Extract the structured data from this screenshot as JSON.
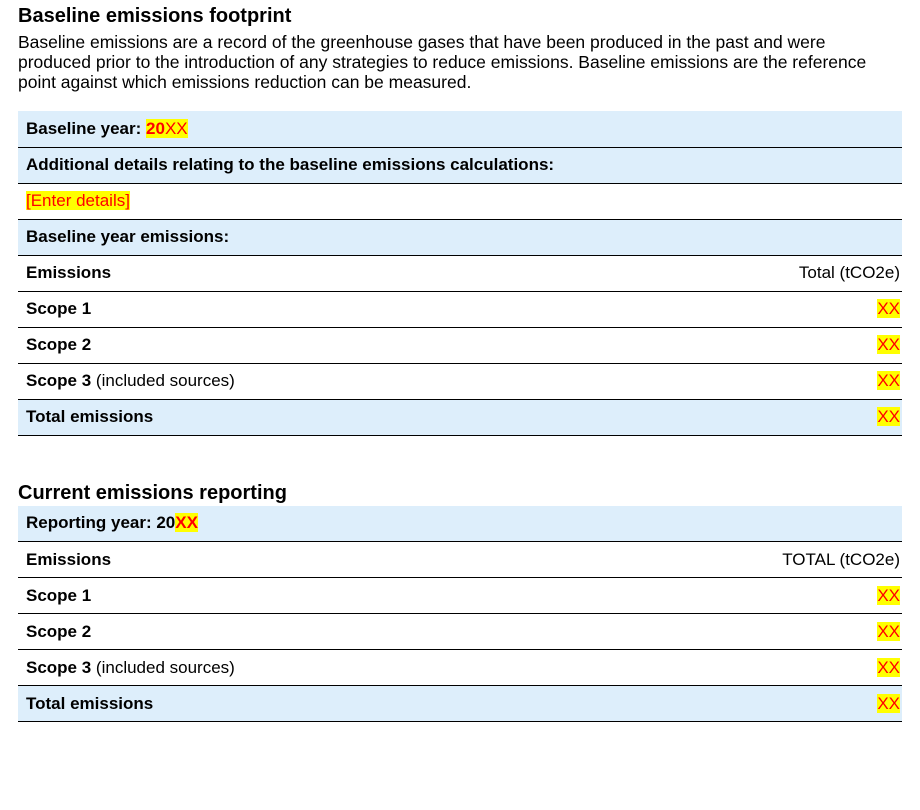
{
  "baseline": {
    "title": "Baseline emissions footprint",
    "intro": "Baseline emissions are a record of the greenhouse gases that have been produced in the past and were produced prior to the introduction of any strategies to reduce emissions. Baseline emissions are the reference point against which emissions reduction can be measured.",
    "year_label": "Baseline year: ",
    "year_prefix": "20",
    "year_placeholder": "XX",
    "details_label": "Additional details relating to the baseline emissions calculations:",
    "details_placeholder": "[Enter details]",
    "year_emissions_label": "Baseline year emissions:",
    "emissions_header": "Emissions",
    "total_header": "Total (tCO2e)",
    "rows": [
      {
        "label": "Scope 1",
        "suffix": "",
        "value": "XX"
      },
      {
        "label": "Scope 2",
        "suffix": "",
        "value": "XX"
      },
      {
        "label": "Scope 3",
        "suffix": " (included sources)",
        "value": "XX"
      }
    ],
    "total_label": "Total emissions",
    "total_value": "XX"
  },
  "current": {
    "title": "Current emissions reporting",
    "year_label": "Reporting year: 20",
    "year_placeholder": "XX",
    "emissions_header": "Emissions",
    "total_header": "TOTAL (tCO2e)",
    "rows": [
      {
        "label": "Scope 1",
        "suffix": "",
        "value": "XX"
      },
      {
        "label": "Scope 2",
        "suffix": "",
        "value": "XX"
      },
      {
        "label": "Scope 3",
        "suffix": " (included sources)",
        "value": "XX"
      }
    ],
    "total_label": "Total emissions",
    "total_value": "XX"
  },
  "colors": {
    "shade": "#ddeefb",
    "highlight": "#ffff00",
    "placeholder_text": "#ff0000"
  }
}
